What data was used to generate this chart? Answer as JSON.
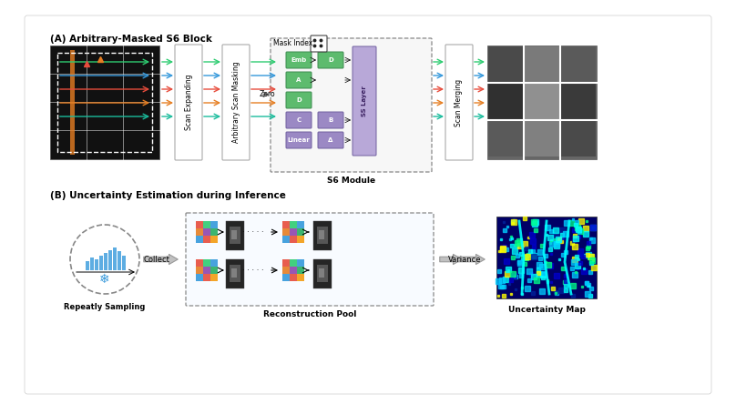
{
  "bg_color": "#ffffff",
  "title_A": "(A) Arbitrary-Masked S6 Block",
  "title_B": "(B) Uncertainty Estimation during Inference",
  "label_scan_expanding": "Scan Expanding",
  "label_arb_scan_masking": "Arbitrary Scan Masking",
  "label_scan_merging": "Scan Merging",
  "label_s6_module": "S6 Module",
  "label_mask_index": "Mask Index:",
  "label_zero": "Zero",
  "label_emb": "Emb",
  "label_A": "A",
  "label_D": "D",
  "label_C": "C",
  "label_linear": "Linear",
  "label_B": "B",
  "label_delta": "Δ",
  "label_ss_layer": "SS Layer",
  "label_repeatedly": "Repeatly Sampling",
  "label_collect": "Collect",
  "label_recon_pool": "Reconstruction Pool",
  "label_variance": "Variance",
  "label_uncertainty": "Uncertainty Map",
  "arrow_colors": [
    "#2ecc71",
    "#3498db",
    "#e74c3c",
    "#e67e22",
    "#1abc9c"
  ],
  "green_box": "#5dbb6e",
  "green_edge": "#3d8b50",
  "purple_box": "#9b89c4",
  "purple_edge": "#7060a0",
  "ss_box": "#b8a8d8",
  "hist_color": "#5dade2"
}
